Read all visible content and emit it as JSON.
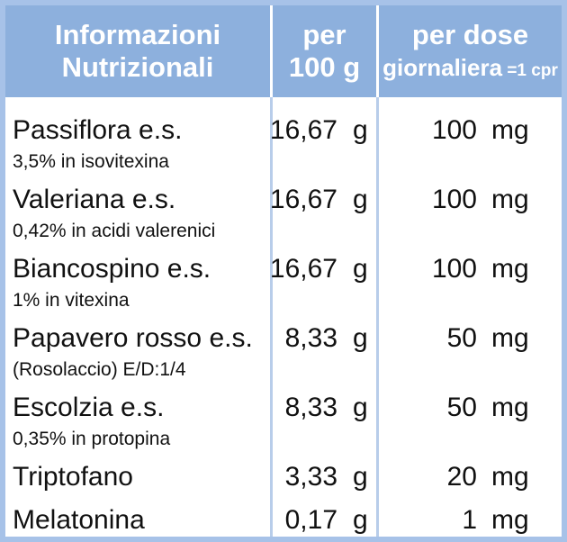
{
  "header": {
    "columns": [
      {
        "lines": [
          "Informazioni",
          "Nutrizionali"
        ]
      },
      {
        "lines": [
          "per",
          "100 g"
        ]
      },
      {
        "lines": [
          "per dose",
          "giornaliera"
        ],
        "note": "=1 cpr"
      }
    ]
  },
  "table": {
    "rows": [
      {
        "name": "Passiflora e.s.",
        "detail": "3,5% in isovitexina",
        "per_100g": {
          "amount": "16,67",
          "unit": "g"
        },
        "per_dose": {
          "amount": "100",
          "unit": "mg"
        }
      },
      {
        "name": "Valeriana e.s.",
        "detail": "0,42% in acidi valerenici",
        "per_100g": {
          "amount": "16,67",
          "unit": "g"
        },
        "per_dose": {
          "amount": "100",
          "unit": "mg"
        }
      },
      {
        "name": "Biancospino e.s.",
        "detail": "1% in vitexina",
        "per_100g": {
          "amount": "16,67",
          "unit": "g"
        },
        "per_dose": {
          "amount": "100",
          "unit": "mg"
        }
      },
      {
        "name": "Papavero rosso e.s.",
        "detail": "(Rosolaccio) E/D:1/4",
        "per_100g": {
          "amount": "8,33",
          "unit": "g"
        },
        "per_dose": {
          "amount": "50",
          "unit": "mg"
        }
      },
      {
        "name": "Escolzia e.s.",
        "detail": "0,35% in protopina",
        "per_100g": {
          "amount": "8,33",
          "unit": "g"
        },
        "per_dose": {
          "amount": "50",
          "unit": "mg"
        }
      },
      {
        "name": "Triptofano",
        "per_100g": {
          "amount": "3,33",
          "unit": "g"
        },
        "per_dose": {
          "amount": "20",
          "unit": "mg"
        }
      },
      {
        "name": "Melatonina",
        "per_100g": {
          "amount": "0,17",
          "unit": "g"
        },
        "per_dose": {
          "amount": "1",
          "unit": "mg"
        }
      }
    ]
  }
}
